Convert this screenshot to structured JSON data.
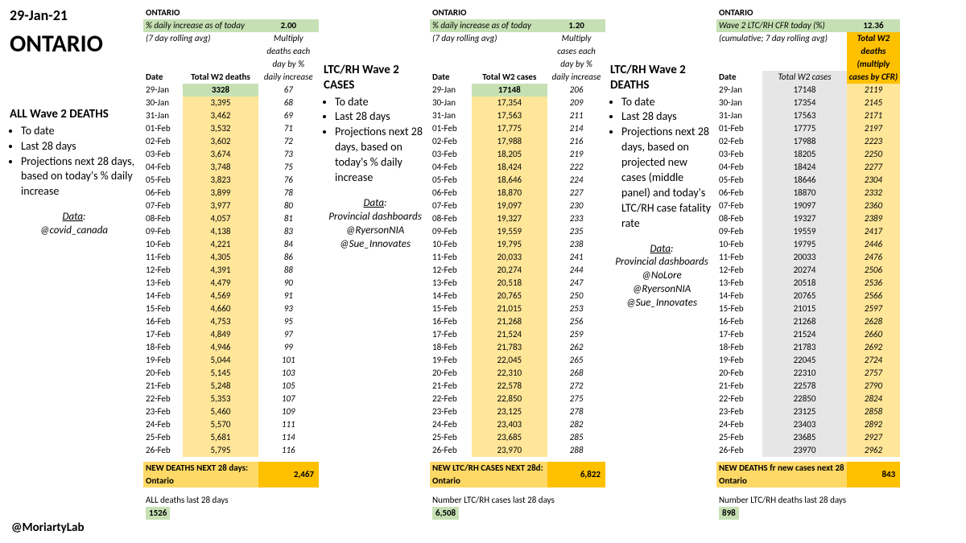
{
  "header": {
    "date": "29-Jan-21",
    "province": "ONTARIO",
    "credit": "@MoriartyLab"
  },
  "colors": {
    "green": "#c6e0b4",
    "yellow": "#ffe699",
    "gold": "#ffd966",
    "orange": "#ffc000",
    "grey": "#e7e6e6"
  },
  "panel1": {
    "region": "ONTARIO",
    "metric_label": "% daily increase as of today",
    "metric_sub": "(7 day rolling avg)",
    "metric_val": "2.00",
    "col_hint": "Multiply deaths each day by % daily increase",
    "col0": "Date",
    "col1": "Total W2 deaths",
    "summary_label": "NEW DEATHS NEXT 28 days: Ontario",
    "summary_val": "2,467",
    "last28_label": "ALL deaths last 28 days",
    "last28_val": "1526",
    "desc_title": "ALL Wave 2 DEATHS",
    "desc_items": [
      "To date",
      "Last 28 days",
      "Projections next 28 days, based on today's % daily increase"
    ],
    "src_label": "Data",
    "src_lines": [
      "@covid_canada"
    ],
    "rows": [
      [
        "29-Jan",
        "3328",
        "67"
      ],
      [
        "30-Jan",
        "3,395",
        "68"
      ],
      [
        "31-Jan",
        "3,462",
        "69"
      ],
      [
        "01-Feb",
        "3,532",
        "71"
      ],
      [
        "02-Feb",
        "3,602",
        "72"
      ],
      [
        "03-Feb",
        "3,674",
        "73"
      ],
      [
        "04-Feb",
        "3,748",
        "75"
      ],
      [
        "05-Feb",
        "3,823",
        "76"
      ],
      [
        "06-Feb",
        "3,899",
        "78"
      ],
      [
        "07-Feb",
        "3,977",
        "80"
      ],
      [
        "08-Feb",
        "4,057",
        "81"
      ],
      [
        "09-Feb",
        "4,138",
        "83"
      ],
      [
        "10-Feb",
        "4,221",
        "84"
      ],
      [
        "11-Feb",
        "4,305",
        "86"
      ],
      [
        "12-Feb",
        "4,391",
        "88"
      ],
      [
        "13-Feb",
        "4,479",
        "90"
      ],
      [
        "14-Feb",
        "4,569",
        "91"
      ],
      [
        "15-Feb",
        "4,660",
        "93"
      ],
      [
        "16-Feb",
        "4,753",
        "95"
      ],
      [
        "17-Feb",
        "4,849",
        "97"
      ],
      [
        "18-Feb",
        "4,946",
        "99"
      ],
      [
        "19-Feb",
        "5,044",
        "101"
      ],
      [
        "20-Feb",
        "5,145",
        "103"
      ],
      [
        "21-Feb",
        "5,248",
        "105"
      ],
      [
        "22-Feb",
        "5,353",
        "107"
      ],
      [
        "23-Feb",
        "5,460",
        "109"
      ],
      [
        "24-Feb",
        "5,570",
        "111"
      ],
      [
        "25-Feb",
        "5,681",
        "114"
      ],
      [
        "26-Feb",
        "5,795",
        "116"
      ]
    ]
  },
  "panel2": {
    "region": "ONTARIO",
    "metric_label": "% daily increase as of today",
    "metric_sub": "(7 day rolling avg)",
    "metric_val": "1.20",
    "col_hint": "Multiply cases each day by % daily increase",
    "col0": "Date",
    "col1": "Total W2 cases",
    "summary_label": "NEW LTC/RH CASES NEXT 28d: Ontario",
    "summary_val": "6,822",
    "last28_label": "Number LTC/RH cases last 28 days",
    "last28_val": "6,508",
    "desc_title": "LTC/RH Wave 2 CASES",
    "desc_items": [
      "To date",
      "Last 28 days",
      "Projections next 28 days, based on today's % daily increase"
    ],
    "src_label": "Data",
    "src_lines": [
      "Provincial dashboards",
      "@RyersonNIA",
      "@Sue_Innovates"
    ],
    "rows": [
      [
        "29-Jan",
        "17148",
        "206"
      ],
      [
        "30-Jan",
        "17,354",
        "209"
      ],
      [
        "31-Jan",
        "17,563",
        "211"
      ],
      [
        "01-Feb",
        "17,775",
        "214"
      ],
      [
        "02-Feb",
        "17,988",
        "216"
      ],
      [
        "03-Feb",
        "18,205",
        "219"
      ],
      [
        "04-Feb",
        "18,424",
        "222"
      ],
      [
        "05-Feb",
        "18,646",
        "224"
      ],
      [
        "06-Feb",
        "18,870",
        "227"
      ],
      [
        "07-Feb",
        "19,097",
        "230"
      ],
      [
        "08-Feb",
        "19,327",
        "233"
      ],
      [
        "09-Feb",
        "19,559",
        "235"
      ],
      [
        "10-Feb",
        "19,795",
        "238"
      ],
      [
        "11-Feb",
        "20,033",
        "241"
      ],
      [
        "12-Feb",
        "20,274",
        "244"
      ],
      [
        "13-Feb",
        "20,518",
        "247"
      ],
      [
        "14-Feb",
        "20,765",
        "250"
      ],
      [
        "15-Feb",
        "21,015",
        "253"
      ],
      [
        "16-Feb",
        "21,268",
        "256"
      ],
      [
        "17-Feb",
        "21,524",
        "259"
      ],
      [
        "18-Feb",
        "21,783",
        "262"
      ],
      [
        "19-Feb",
        "22,045",
        "265"
      ],
      [
        "20-Feb",
        "22,310",
        "268"
      ],
      [
        "21-Feb",
        "22,578",
        "272"
      ],
      [
        "22-Feb",
        "22,850",
        "275"
      ],
      [
        "23-Feb",
        "23,125",
        "278"
      ],
      [
        "24-Feb",
        "23,403",
        "282"
      ],
      [
        "25-Feb",
        "23,685",
        "285"
      ],
      [
        "26-Feb",
        "23,970",
        "288"
      ]
    ]
  },
  "panel3": {
    "region": "ONTARIO",
    "metric_label": "Wave 2 LTC/RH CFR today (%)",
    "metric_sub": "(cumulative; 7 day rolling avg)",
    "metric_val": "12.36",
    "col0": "Date",
    "col1": "Total W2 cases",
    "col2_lines": [
      "Total W2",
      "deaths",
      "(multiply",
      "cases by CFR)"
    ],
    "summary_label": "NEW DEATHS fr new cases next 28 Ontario",
    "summary_val": "843",
    "last28_label": "Number LTC/RH deaths last 28 days",
    "last28_val": "898",
    "desc_title": "LTC/RH Wave 2 DEATHS",
    "desc_items": [
      "To date",
      "Last 28 days",
      "Projections next 28 days, based on projected new cases (middle panel) and today's LTC/RH case fatality rate"
    ],
    "src_label": "Data",
    "src_lines": [
      "Provincial dashboards",
      "@NoLore",
      "@RyersonNIA",
      "@Sue_Innovates"
    ],
    "rows": [
      [
        "29-Jan",
        "17148",
        "2119"
      ],
      [
        "30-Jan",
        "17354",
        "2145"
      ],
      [
        "31-Jan",
        "17563",
        "2171"
      ],
      [
        "01-Feb",
        "17775",
        "2197"
      ],
      [
        "02-Feb",
        "17988",
        "2223"
      ],
      [
        "03-Feb",
        "18205",
        "2250"
      ],
      [
        "04-Feb",
        "18424",
        "2277"
      ],
      [
        "05-Feb",
        "18646",
        "2304"
      ],
      [
        "06-Feb",
        "18870",
        "2332"
      ],
      [
        "07-Feb",
        "19097",
        "2360"
      ],
      [
        "08-Feb",
        "19327",
        "2389"
      ],
      [
        "09-Feb",
        "19559",
        "2417"
      ],
      [
        "10-Feb",
        "19795",
        "2446"
      ],
      [
        "11-Feb",
        "20033",
        "2476"
      ],
      [
        "12-Feb",
        "20274",
        "2506"
      ],
      [
        "13-Feb",
        "20518",
        "2536"
      ],
      [
        "14-Feb",
        "20765",
        "2566"
      ],
      [
        "15-Feb",
        "21015",
        "2597"
      ],
      [
        "16-Feb",
        "21268",
        "2628"
      ],
      [
        "17-Feb",
        "21524",
        "2660"
      ],
      [
        "18-Feb",
        "21783",
        "2692"
      ],
      [
        "19-Feb",
        "22045",
        "2724"
      ],
      [
        "20-Feb",
        "22310",
        "2757"
      ],
      [
        "21-Feb",
        "22578",
        "2790"
      ],
      [
        "22-Feb",
        "22850",
        "2824"
      ],
      [
        "23-Feb",
        "23125",
        "2858"
      ],
      [
        "24-Feb",
        "23403",
        "2892"
      ],
      [
        "25-Feb",
        "23685",
        "2927"
      ],
      [
        "26-Feb",
        "23970",
        "2962"
      ]
    ]
  }
}
